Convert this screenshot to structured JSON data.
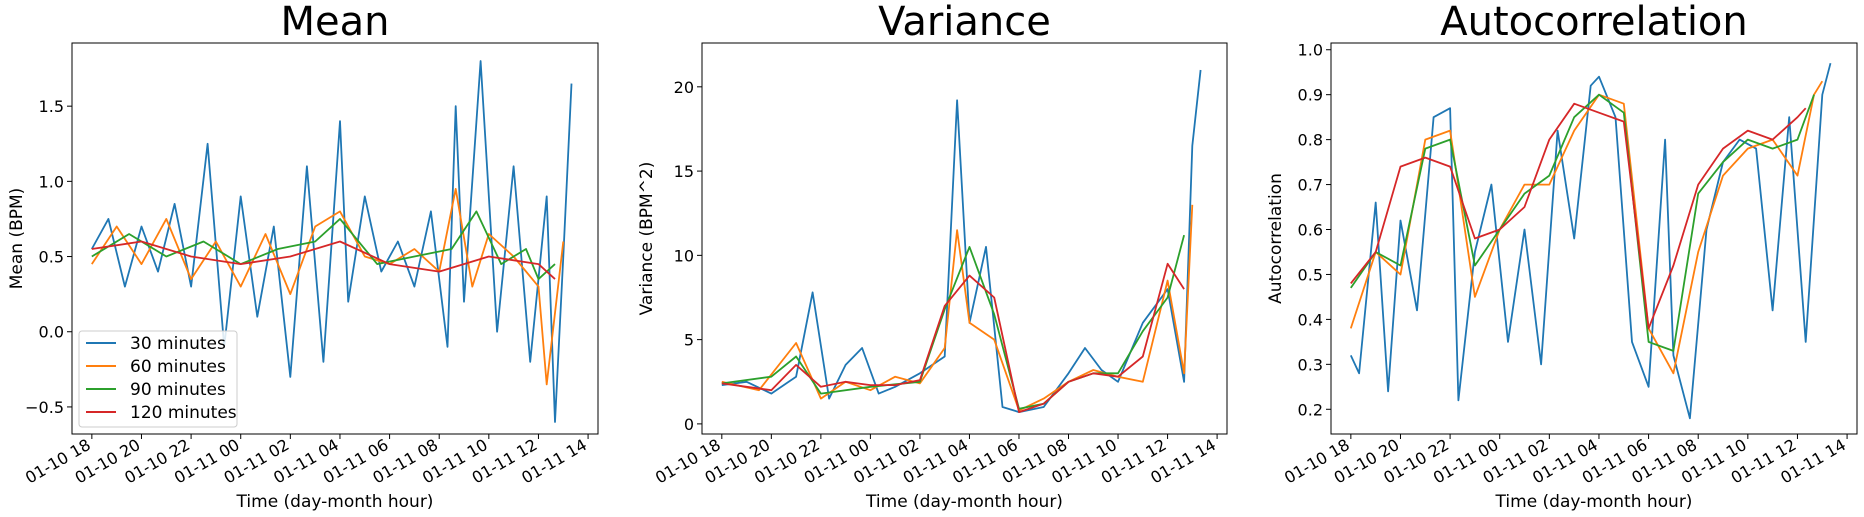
{
  "chart_data": [
    {
      "type": "line",
      "title": "Mean",
      "xlabel": "Time (day-month hour)",
      "ylabel": "Mean (BPM)",
      "x_range": [
        "01-10 17:12",
        "01-11 14:24"
      ],
      "ylim": [
        -0.68,
        1.92
      ],
      "xticks": [
        "01-10 18",
        "01-10 20",
        "01-10 22",
        "01-11 00",
        "01-11 02",
        "01-11 04",
        "01-11 06",
        "01-11 08",
        "01-11 10",
        "01-11 12",
        "01-11 14"
      ],
      "yticks": [
        "−0.5",
        "0.0",
        "0.5",
        "1.0",
        "1.5"
      ],
      "grid": false,
      "legend": "lower-left",
      "series": [
        {
          "name": "30 minutes",
          "color": "#1f77b4",
          "x": [
            "01-10 18:00",
            "01-10 18:40",
            "01-10 19:20",
            "01-10 20:00",
            "01-10 20:40",
            "01-10 21:20",
            "01-10 22:00",
            "01-10 22:40",
            "01-10 23:20",
            "01-11 00:00",
            "01-11 00:40",
            "01-11 01:20",
            "01-11 02:00",
            "01-11 02:40",
            "01-11 03:20",
            "01-11 04:00",
            "01-11 04:20",
            "01-11 05:00",
            "01-11 05:40",
            "01-11 06:20",
            "01-11 07:00",
            "01-11 07:40",
            "01-11 08:20",
            "01-11 08:40",
            "01-11 09:00",
            "01-11 09:40",
            "01-11 10:20",
            "01-11 11:00",
            "01-11 11:40",
            "01-11 12:20",
            "01-11 12:40",
            "01-11 13:00",
            "01-11 13:20"
          ],
          "y": [
            0.55,
            0.75,
            0.3,
            0.7,
            0.4,
            0.85,
            0.3,
            1.25,
            -0.1,
            0.9,
            0.1,
            0.7,
            -0.3,
            1.1,
            -0.2,
            1.4,
            0.2,
            0.9,
            0.4,
            0.6,
            0.3,
            0.8,
            -0.1,
            1.5,
            0.2,
            1.8,
            0.0,
            1.1,
            -0.2,
            0.9,
            -0.6,
            0.5,
            1.65
          ]
        },
        {
          "name": "60 minutes",
          "color": "#ff7f0e",
          "x": [
            "01-10 18:00",
            "01-10 19:00",
            "01-10 20:00",
            "01-10 21:00",
            "01-10 22:00",
            "01-10 23:00",
            "01-11 00:00",
            "01-11 01:00",
            "01-11 02:00",
            "01-11 03:00",
            "01-11 04:00",
            "01-11 05:00",
            "01-11 06:00",
            "01-11 07:00",
            "01-11 08:00",
            "01-11 08:40",
            "01-11 09:20",
            "01-11 10:00",
            "01-11 11:00",
            "01-11 12:00",
            "01-11 12:20",
            "01-11 13:00"
          ],
          "y": [
            0.45,
            0.7,
            0.45,
            0.75,
            0.35,
            0.6,
            0.3,
            0.65,
            0.25,
            0.7,
            0.8,
            0.5,
            0.45,
            0.55,
            0.4,
            0.95,
            0.3,
            0.65,
            0.5,
            0.3,
            -0.35,
            0.6
          ]
        },
        {
          "name": "90 minutes",
          "color": "#2ca02c",
          "x": [
            "01-10 18:00",
            "01-10 19:30",
            "01-10 21:00",
            "01-10 22:30",
            "01-11 00:00",
            "01-11 01:30",
            "01-11 03:00",
            "01-11 04:00",
            "01-11 05:30",
            "01-11 07:00",
            "01-11 08:30",
            "01-11 09:30",
            "01-11 10:30",
            "01-11 11:30",
            "01-11 12:00",
            "01-11 12:40"
          ],
          "y": [
            0.5,
            0.65,
            0.5,
            0.6,
            0.45,
            0.55,
            0.6,
            0.75,
            0.45,
            0.5,
            0.55,
            0.8,
            0.45,
            0.55,
            0.35,
            0.45
          ]
        },
        {
          "name": "120 minutes",
          "color": "#d62728",
          "x": [
            "01-10 18:00",
            "01-10 20:00",
            "01-10 22:00",
            "01-11 00:00",
            "01-11 02:00",
            "01-11 04:00",
            "01-11 06:00",
            "01-11 08:00",
            "01-11 10:00",
            "01-11 12:00",
            "01-11 12:40"
          ],
          "y": [
            0.55,
            0.6,
            0.5,
            0.45,
            0.5,
            0.6,
            0.45,
            0.4,
            0.5,
            0.45,
            0.35
          ]
        }
      ]
    },
    {
      "type": "line",
      "title": "Variance",
      "xlabel": "Time (day-month hour)",
      "ylabel": "Variance (BPM^2)",
      "x_range": [
        "01-10 17:12",
        "01-11 14:24"
      ],
      "ylim": [
        -0.6,
        22.6
      ],
      "xticks": [
        "01-10 18",
        "01-10 20",
        "01-10 22",
        "01-11 00",
        "01-11 02",
        "01-11 04",
        "01-11 06",
        "01-11 08",
        "01-11 10",
        "01-11 12",
        "01-11 14"
      ],
      "yticks": [
        "0",
        "5",
        "10",
        "15",
        "20"
      ],
      "grid": false,
      "series": [
        {
          "name": "30 minutes",
          "color": "#1f77b4",
          "x": [
            "01-10 18:00",
            "01-10 19:00",
            "01-10 20:00",
            "01-10 21:00",
            "01-10 21:40",
            "01-10 22:20",
            "01-10 23:00",
            "01-10 23:40",
            "01-11 00:20",
            "01-11 01:00",
            "01-11 02:00",
            "01-11 03:00",
            "01-11 03:30",
            "01-11 04:00",
            "01-11 04:40",
            "01-11 05:20",
            "01-11 06:00",
            "01-11 07:00",
            "01-11 08:00",
            "01-11 08:40",
            "01-11 09:20",
            "01-11 10:00",
            "01-11 11:00",
            "01-11 12:00",
            "01-11 12:40",
            "01-11 13:00",
            "01-11 13:20"
          ],
          "y": [
            2.3,
            2.5,
            1.8,
            2.8,
            7.8,
            1.5,
            3.5,
            4.5,
            1.8,
            2.2,
            3.0,
            4.0,
            19.2,
            6.0,
            10.5,
            1.0,
            0.7,
            1.0,
            3.0,
            4.5,
            3.2,
            2.5,
            6.0,
            8.0,
            2.5,
            16.5,
            21.0
          ]
        },
        {
          "name": "60 minutes",
          "color": "#ff7f0e",
          "x": [
            "01-10 18:00",
            "01-10 19:30",
            "01-10 21:00",
            "01-10 22:00",
            "01-10 23:00",
            "01-11 00:00",
            "01-11 01:00",
            "01-11 02:00",
            "01-11 03:00",
            "01-11 03:30",
            "01-11 04:00",
            "01-11 05:00",
            "01-11 06:00",
            "01-11 07:00",
            "01-11 08:00",
            "01-11 09:00",
            "01-11 10:00",
            "01-11 11:00",
            "01-11 12:00",
            "01-11 12:40",
            "01-11 13:00"
          ],
          "y": [
            2.5,
            2.0,
            4.8,
            1.5,
            2.5,
            2.0,
            2.8,
            2.4,
            4.5,
            11.5,
            6.0,
            5.0,
            0.8,
            1.5,
            2.5,
            3.2,
            2.8,
            2.5,
            8.5,
            3.0,
            13.0
          ]
        },
        {
          "name": "90 minutes",
          "color": "#2ca02c",
          "x": [
            "01-10 18:00",
            "01-10 20:00",
            "01-10 21:00",
            "01-10 22:00",
            "01-11 00:00",
            "01-11 02:00",
            "01-11 03:00",
            "01-11 04:00",
            "01-11 05:00",
            "01-11 06:00",
            "01-11 07:00",
            "01-11 08:00",
            "01-11 09:00",
            "01-11 10:00",
            "01-11 11:00",
            "01-11 12:00",
            "01-11 12:40"
          ],
          "y": [
            2.4,
            2.8,
            4.0,
            1.8,
            2.2,
            2.5,
            6.8,
            10.5,
            6.5,
            0.9,
            1.2,
            2.5,
            3.0,
            3.0,
            5.5,
            7.5,
            11.2
          ]
        },
        {
          "name": "120 minutes",
          "color": "#d62728",
          "x": [
            "01-10 18:00",
            "01-10 19:00",
            "01-10 20:00",
            "01-10 21:00",
            "01-10 22:00",
            "01-10 23:00",
            "01-11 00:00",
            "01-11 01:00",
            "01-11 02:00",
            "01-11 03:00",
            "01-11 04:00",
            "01-11 05:00",
            "01-11 06:00",
            "01-11 07:00",
            "01-11 08:00",
            "01-11 09:00",
            "01-11 10:00",
            "01-11 11:00",
            "01-11 12:00",
            "01-11 12:40"
          ],
          "y": [
            2.4,
            2.2,
            2.0,
            3.5,
            2.2,
            2.5,
            2.3,
            2.3,
            2.6,
            7.0,
            8.8,
            7.5,
            0.7,
            1.2,
            2.5,
            3.0,
            2.8,
            4.0,
            9.5,
            8.0
          ]
        }
      ]
    },
    {
      "type": "line",
      "title": "Autocorrelation",
      "xlabel": "Time (day-month hour)",
      "ylabel": "Autocorrelation",
      "x_range": [
        "01-10 17:12",
        "01-11 14:24"
      ],
      "ylim": [
        0.145,
        1.015
      ],
      "xticks": [
        "01-10 18",
        "01-10 20",
        "01-10 22",
        "01-11 00",
        "01-11 02",
        "01-11 04",
        "01-11 06",
        "01-11 08",
        "01-11 10",
        "01-11 12",
        "01-11 14"
      ],
      "yticks": [
        "0.2",
        "0.3",
        "0.4",
        "0.5",
        "0.6",
        "0.7",
        "0.8",
        "0.9",
        "1.0"
      ],
      "grid": false,
      "series": [
        {
          "name": "30 minutes",
          "color": "#1f77b4",
          "x": [
            "01-10 18:00",
            "01-10 18:20",
            "01-10 19:00",
            "01-10 19:30",
            "01-10 20:00",
            "01-10 20:40",
            "01-10 21:20",
            "01-10 22:00",
            "01-10 22:20",
            "01-10 23:00",
            "01-10 23:40",
            "01-11 00:20",
            "01-11 01:00",
            "01-11 01:40",
            "01-11 02:20",
            "01-11 03:00",
            "01-11 03:40",
            "01-11 04:00",
            "01-11 04:40",
            "01-11 05:20",
            "01-11 06:00",
            "01-11 06:40",
            "01-11 07:00",
            "01-11 07:40",
            "01-11 08:20",
            "01-11 09:00",
            "01-11 09:40",
            "01-11 10:20",
            "01-11 11:00",
            "01-11 11:40",
            "01-11 12:20",
            "01-11 13:00",
            "01-11 13:20"
          ],
          "y": [
            0.32,
            0.28,
            0.66,
            0.24,
            0.62,
            0.42,
            0.85,
            0.87,
            0.22,
            0.55,
            0.7,
            0.35,
            0.6,
            0.3,
            0.82,
            0.58,
            0.92,
            0.94,
            0.85,
            0.35,
            0.25,
            0.8,
            0.32,
            0.18,
            0.6,
            0.75,
            0.8,
            0.78,
            0.42,
            0.85,
            0.35,
            0.9,
            0.97
          ]
        },
        {
          "name": "60 minutes",
          "color": "#ff7f0e",
          "x": [
            "01-10 18:00",
            "01-10 19:00",
            "01-10 20:00",
            "01-10 21:00",
            "01-10 22:00",
            "01-10 23:00",
            "01-11 00:00",
            "01-11 01:00",
            "01-11 02:00",
            "01-11 03:00",
            "01-11 04:00",
            "01-11 05:00",
            "01-11 06:00",
            "01-11 07:00",
            "01-11 08:00",
            "01-11 09:00",
            "01-11 10:00",
            "01-11 11:00",
            "01-11 12:00",
            "01-11 12:40",
            "01-11 13:00"
          ],
          "y": [
            0.38,
            0.55,
            0.5,
            0.8,
            0.82,
            0.45,
            0.6,
            0.7,
            0.7,
            0.82,
            0.9,
            0.88,
            0.38,
            0.28,
            0.55,
            0.72,
            0.78,
            0.8,
            0.72,
            0.9,
            0.93
          ]
        },
        {
          "name": "90 minutes",
          "color": "#2ca02c",
          "x": [
            "01-10 18:00",
            "01-10 19:00",
            "01-10 20:00",
            "01-10 21:00",
            "01-10 22:00",
            "01-10 23:00",
            "01-11 00:00",
            "01-11 01:00",
            "01-11 02:00",
            "01-11 03:00",
            "01-11 04:00",
            "01-11 05:00",
            "01-11 06:00",
            "01-11 07:00",
            "01-11 08:00",
            "01-11 09:00",
            "01-11 10:00",
            "01-11 11:00",
            "01-11 12:00",
            "01-11 12:40"
          ],
          "y": [
            0.47,
            0.55,
            0.52,
            0.78,
            0.8,
            0.52,
            0.6,
            0.68,
            0.72,
            0.85,
            0.9,
            0.86,
            0.35,
            0.33,
            0.68,
            0.75,
            0.8,
            0.78,
            0.8,
            0.9
          ]
        },
        {
          "name": "120 minutes",
          "color": "#d62728",
          "x": [
            "01-10 18:00",
            "01-10 19:00",
            "01-10 20:00",
            "01-10 21:00",
            "01-10 22:00",
            "01-10 23:00",
            "01-11 00:00",
            "01-11 01:00",
            "01-11 02:00",
            "01-11 03:00",
            "01-11 04:00",
            "01-11 05:00",
            "01-11 06:00",
            "01-11 07:00",
            "01-11 08:00",
            "01-11 09:00",
            "01-11 10:00",
            "01-11 11:00",
            "01-11 12:00",
            "01-11 12:20"
          ],
          "y": [
            0.48,
            0.55,
            0.74,
            0.76,
            0.74,
            0.58,
            0.6,
            0.65,
            0.8,
            0.88,
            0.86,
            0.84,
            0.38,
            0.52,
            0.7,
            0.78,
            0.82,
            0.8,
            0.85,
            0.87
          ]
        }
      ]
    }
  ]
}
